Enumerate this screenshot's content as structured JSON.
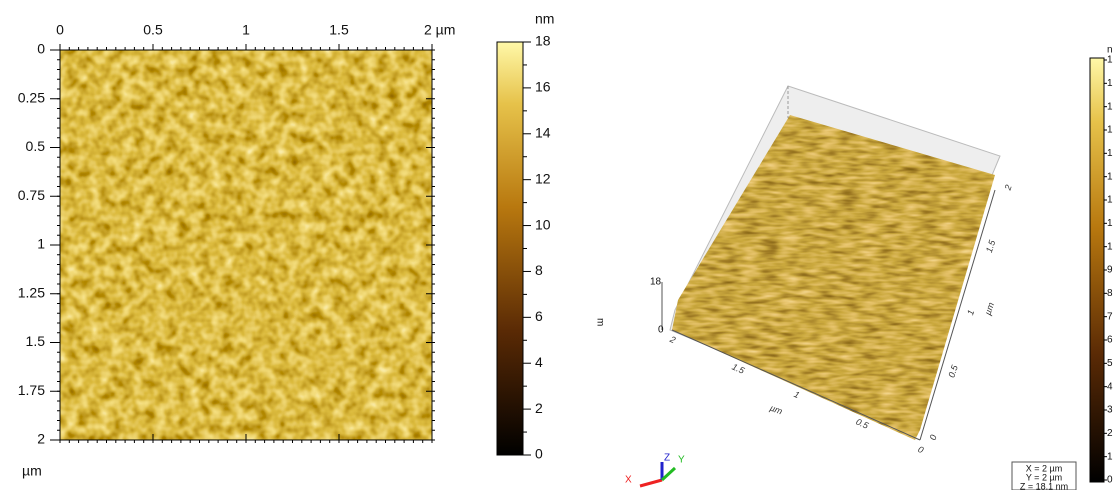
{
  "left": {
    "x_ticks": [
      "0",
      "0.5",
      "1",
      "1.5",
      "2 µm"
    ],
    "y_ticks": [
      "0",
      "0.25",
      "0.5",
      "0.75",
      "1",
      "1.25",
      "1.5",
      "1.75",
      "2"
    ],
    "y_unit": "µm",
    "colorbar": {
      "unit": "nm",
      "ticks": [
        "18",
        "16",
        "14",
        "12",
        "10",
        "8",
        "6",
        "4",
        "2",
        "0"
      ]
    }
  },
  "right": {
    "z_max": "18",
    "z_min": "0",
    "z_unit": "m",
    "front_ticks": [
      "2",
      "1.5",
      "1",
      "0.5",
      "0"
    ],
    "front_unit": "µm",
    "side_ticks": [
      "0",
      "0.5",
      "1",
      "1.5",
      "2"
    ],
    "side_unit": "µm",
    "axes": {
      "x": "X",
      "y": "Y",
      "z": "Z"
    },
    "info": [
      "X = 2 µm",
      "Y = 2 µm",
      "Z = 18.1 nm"
    ],
    "colorbar": {
      "unit": "n",
      "ticks": [
        "1",
        "1",
        "1",
        "1",
        "1",
        "1",
        "1",
        "1",
        "1",
        "9",
        "8",
        "7",
        "6",
        "5",
        "4",
        "3",
        "2",
        "1",
        "0"
      ]
    }
  }
}
